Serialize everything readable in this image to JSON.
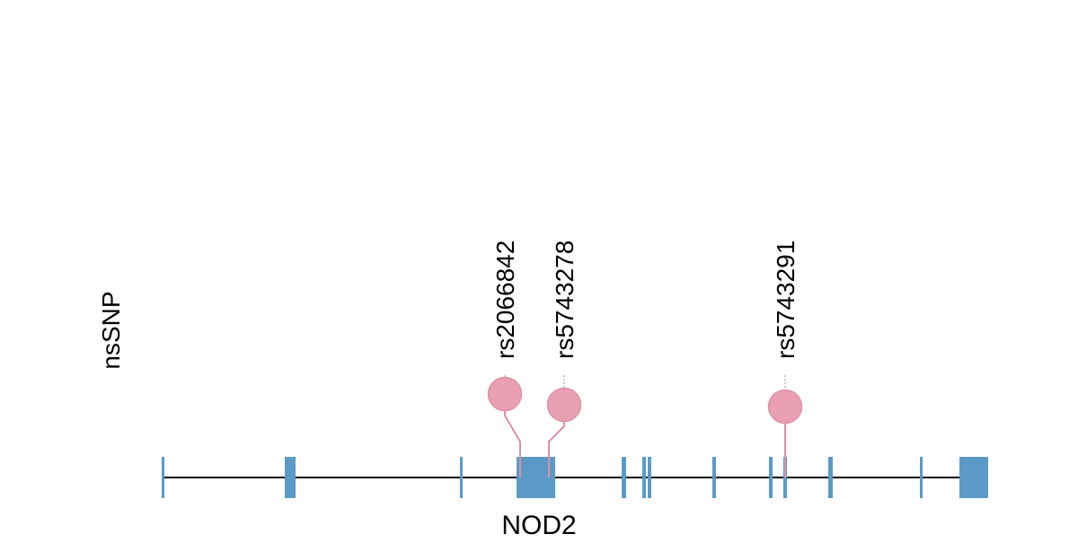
{
  "track_label": "nsSNP",
  "gene": {
    "name": "NOD2",
    "start": 180,
    "end": 1100
  },
  "exons": [
    {
      "start": 180,
      "end": 182
    },
    {
      "start": 317,
      "end": 329
    },
    {
      "start": 512,
      "end": 515
    },
    {
      "start": 575,
      "end": 618
    },
    {
      "start": 692,
      "end": 697
    },
    {
      "start": 715,
      "end": 719
    },
    {
      "start": 721,
      "end": 725
    },
    {
      "start": 793,
      "end": 797
    },
    {
      "start": 856,
      "end": 860
    },
    {
      "start": 872,
      "end": 876
    },
    {
      "start": 922,
      "end": 927
    },
    {
      "start": 1024,
      "end": 1027
    },
    {
      "start": 1068,
      "end": 1100
    }
  ],
  "snps": [
    {
      "id": "rs2066842",
      "position": 579
    },
    {
      "id": "rs5743278",
      "position": 611
    },
    {
      "id": "rs5743291",
      "position": 874
    }
  ],
  "colors": {
    "exon": "#5b9ac6",
    "intron_line": "#000000",
    "snp_fill": "#e8a0b2",
    "snp_stroke": "#e093a6",
    "snp_stem": "#e08fa4",
    "guide": "#999999",
    "text": "#000000"
  }
}
